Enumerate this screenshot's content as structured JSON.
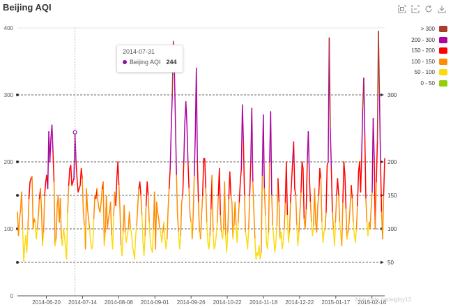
{
  "toolbox": {
    "icons": [
      "zoom-icon",
      "zoom-reset-icon",
      "restore-icon",
      "save-image-icon"
    ]
  },
  "tooltip": {
    "date": "2014-07-31",
    "series": "Beijing AQI",
    "value": "244",
    "color": "#8e14a8"
  },
  "watermark": "blog.csdn.net/eighty13",
  "chart_data": {
    "type": "line",
    "title": "Beijing AQI",
    "ylim": [
      0,
      400
    ],
    "yticks": [
      "0",
      "100",
      "200",
      "300",
      "400"
    ],
    "xticks": [
      "2014-06-20",
      "2014-07-14",
      "2014-08-08",
      "2014-09-01",
      "2014-09-26",
      "2014-10-22",
      "2014-11-18",
      "2014-12-22",
      "2015-01-17",
      "2015-02-16"
    ],
    "mark_lines": [
      50,
      100,
      150,
      200,
      300
    ],
    "legend_position": "right",
    "pieces": [
      {
        "label": "> 300",
        "color": "#ac3b2a"
      },
      {
        "label": "200 - 300",
        "color": "#aa069f"
      },
      {
        "label": "150 - 200",
        "color": "#ff0000"
      },
      {
        "label": "100 - 150",
        "color": "#ff8c00"
      },
      {
        "label": "50 - 100",
        "color": "#fbdb0f"
      },
      {
        "label": "0 - 50",
        "color": "#93ce07"
      }
    ],
    "values": [
      125,
      90,
      115,
      128,
      155,
      100,
      52,
      75,
      90,
      65,
      100,
      145,
      170,
      175,
      178,
      100,
      115,
      110,
      85,
      100,
      120,
      145,
      160,
      130,
      75,
      95,
      150,
      170,
      180,
      160,
      245,
      200,
      235,
      255,
      215,
      170,
      75,
      85,
      135,
      150,
      110,
      145,
      85,
      75,
      100,
      90,
      70,
      55,
      125,
      165,
      190,
      195,
      165,
      170,
      175,
      244,
      200,
      175,
      155,
      160,
      165,
      190,
      175,
      125,
      105,
      70,
      160,
      130,
      115,
      100,
      80,
      70,
      75,
      115,
      150,
      145,
      160,
      140,
      130,
      125,
      140,
      160,
      170,
      75,
      95,
      150,
      100,
      115,
      125,
      140,
      90,
      70,
      120,
      155,
      135,
      175,
      200,
      165,
      130,
      75,
      60,
      95,
      135,
      95,
      80,
      90,
      100,
      125,
      100,
      95,
      75,
      65,
      55,
      90,
      105,
      135,
      160,
      170,
      150,
      120,
      80,
      60,
      90,
      135,
      170,
      150,
      110,
      80,
      70,
      65,
      100,
      155,
      70,
      140,
      125,
      115,
      100,
      95,
      80,
      95,
      110,
      85,
      70,
      85,
      130,
      160,
      190,
      250,
      300,
      380,
      340,
      260,
      180,
      120,
      95,
      70,
      90,
      140,
      150,
      200,
      260,
      290,
      255,
      200,
      160,
      120,
      110,
      85,
      120,
      180,
      240,
      340,
      200,
      140,
      95,
      85,
      120,
      150,
      205,
      205,
      160,
      110,
      80,
      70,
      90,
      130,
      180,
      95,
      70,
      75,
      90,
      110,
      150,
      190,
      120,
      95,
      85,
      100,
      170,
      90,
      65,
      95,
      145,
      185,
      150,
      140,
      85,
      105,
      140,
      105,
      80,
      110,
      140,
      170,
      190,
      285,
      230,
      150,
      95,
      85,
      70,
      100,
      150,
      200,
      280,
      170,
      125,
      85,
      55,
      65,
      60,
      75,
      55,
      65,
      180,
      270,
      160,
      120,
      80,
      70,
      95,
      200,
      275,
      150,
      105,
      85,
      65,
      80,
      105,
      175,
      140,
      85,
      95,
      70,
      80,
      100,
      140,
      200,
      120,
      80,
      95,
      140,
      170,
      200,
      230,
      160,
      150,
      105,
      75,
      95,
      125,
      155,
      200,
      190,
      115,
      100,
      130,
      200,
      245,
      180,
      140,
      110,
      90,
      105,
      160,
      110,
      95,
      135,
      150,
      190,
      175,
      110,
      80,
      95,
      100,
      125,
      195,
      200,
      385,
      250,
      190,
      125,
      100,
      75,
      110,
      150,
      175,
      150,
      110,
      90,
      75,
      140,
      200,
      180,
      130,
      85,
      95,
      110,
      135,
      165,
      145,
      110,
      90,
      80,
      100,
      135,
      185,
      200,
      155,
      210,
      280,
      325,
      240,
      145,
      110,
      90,
      110,
      100,
      130,
      155,
      265,
      205,
      100,
      170,
      230,
      395,
      300,
      200,
      125,
      85,
      150,
      205
    ]
  }
}
